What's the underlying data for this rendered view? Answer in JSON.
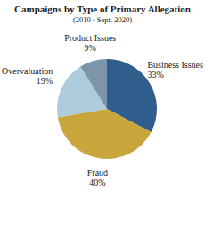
{
  "chart_data": {
    "type": "pie",
    "title": "Campaigns by Type of Primary Allegation",
    "subtitle": "(2010 - Sept. 2020)",
    "categories": [
      "Business Issues",
      "Fraud",
      "Overvaluation",
      "Product Issues"
    ],
    "values": [
      33,
      40,
      19,
      9
    ],
    "value_labels": [
      "33%",
      "40%",
      "19%",
      "9%"
    ],
    "colors": [
      "#2f5d8c",
      "#c9a63c",
      "#aecbde",
      "#7d95aa"
    ],
    "data_labels": true
  }
}
